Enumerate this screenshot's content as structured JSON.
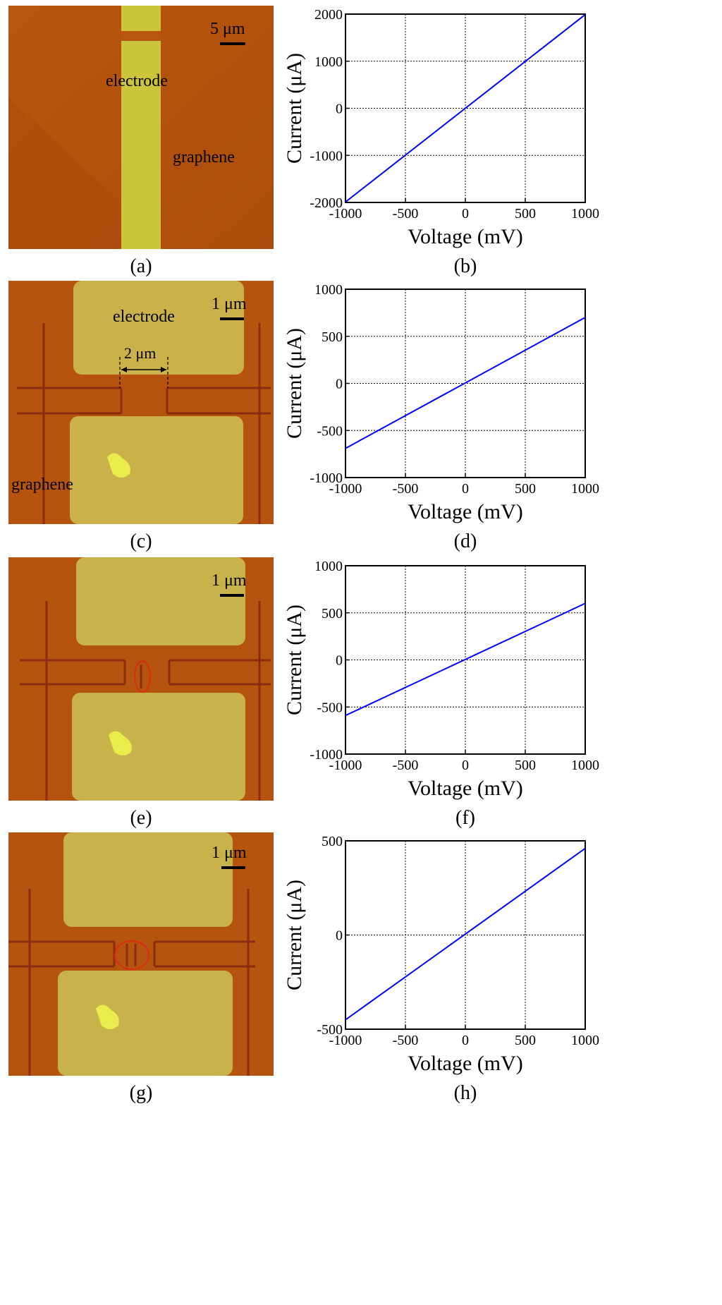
{
  "colors": {
    "afm_background": "#b8560f",
    "afm_electrode": "#cdc63c",
    "afm_trench": "#8a2d10",
    "line": "#0000ff",
    "ellipse": "#dd2a10"
  },
  "panels": {
    "a": {
      "caption": "(a)",
      "scale_label": "5 μm",
      "electrode_label": "electrode",
      "graphene_label": "graphene"
    },
    "c": {
      "caption": "(c)",
      "scale_label": "1 μm",
      "electrode_label": "electrode",
      "graphene_label": "graphene",
      "gap_label": "2 μm"
    },
    "e": {
      "caption": "(e)",
      "scale_label": "1 μm"
    },
    "g": {
      "caption": "(g)",
      "scale_label": "1 μm"
    }
  },
  "chart_data": [
    {
      "id": "b",
      "caption": "(b)",
      "type": "line",
      "xlabel": "Voltage (mV)",
      "ylabel": "Current (μA)",
      "xlim": [
        -1000,
        1000
      ],
      "ylim": [
        -2000,
        2000
      ],
      "x_ticks": [
        "-1000",
        "-500",
        "0",
        "500",
        "1000"
      ],
      "y_ticks": [
        "-2000",
        "-1000",
        "0",
        "1000",
        "2000"
      ],
      "x_tick_values": [
        -1000,
        -500,
        0,
        500,
        1000
      ],
      "y_tick_values": [
        -2000,
        -1000,
        0,
        1000,
        2000
      ],
      "grid": true,
      "series": [
        {
          "x": [
            -1000,
            1000
          ],
          "y": [
            -1990,
            1990
          ]
        }
      ]
    },
    {
      "id": "d",
      "caption": "(d)",
      "type": "line",
      "xlabel": "Voltage (mV)",
      "ylabel": "Current (μA)",
      "xlim": [
        -1000,
        1000
      ],
      "ylim": [
        -1000,
        1000
      ],
      "x_ticks": [
        "-1000",
        "-500",
        "0",
        "500",
        "1000"
      ],
      "y_ticks": [
        "-1000",
        "-500",
        "0",
        "500",
        "1000"
      ],
      "x_tick_values": [
        -1000,
        -500,
        0,
        500,
        1000
      ],
      "y_tick_values": [
        -1000,
        -500,
        0,
        500,
        1000
      ],
      "grid": true,
      "series": [
        {
          "x": [
            -1000,
            1000
          ],
          "y": [
            -690,
            700
          ]
        }
      ]
    },
    {
      "id": "f",
      "caption": "(f)",
      "type": "line",
      "xlabel": "Voltage (mV)",
      "ylabel": "Current (μA)",
      "xlim": [
        -1000,
        1000
      ],
      "ylim": [
        -1000,
        1000
      ],
      "x_ticks": [
        "-1000",
        "-500",
        "0",
        "500",
        "1000"
      ],
      "y_ticks": [
        "-1000",
        "-500",
        "0",
        "500",
        "1000"
      ],
      "x_tick_values": [
        -1000,
        -500,
        0,
        500,
        1000
      ],
      "y_tick_values": [
        -1000,
        -500,
        0,
        500,
        1000
      ],
      "grid": true,
      "series": [
        {
          "x": [
            -1000,
            1000
          ],
          "y": [
            -590,
            600
          ]
        }
      ]
    },
    {
      "id": "h",
      "caption": "(h)",
      "type": "line",
      "xlabel": "Voltage (mV)",
      "ylabel": "Current (μA)",
      "xlim": [
        -1000,
        1000
      ],
      "ylim": [
        -500,
        500
      ],
      "x_ticks": [
        "-1000",
        "-500",
        "0",
        "500",
        "1000"
      ],
      "y_ticks": [
        "-500",
        "0",
        "500"
      ],
      "x_tick_values": [
        -1000,
        -500,
        0,
        500,
        1000
      ],
      "y_tick_values": [
        -500,
        0,
        500
      ],
      "grid": true,
      "series": [
        {
          "x": [
            -1000,
            1000
          ],
          "y": [
            -450,
            460
          ]
        }
      ]
    }
  ]
}
